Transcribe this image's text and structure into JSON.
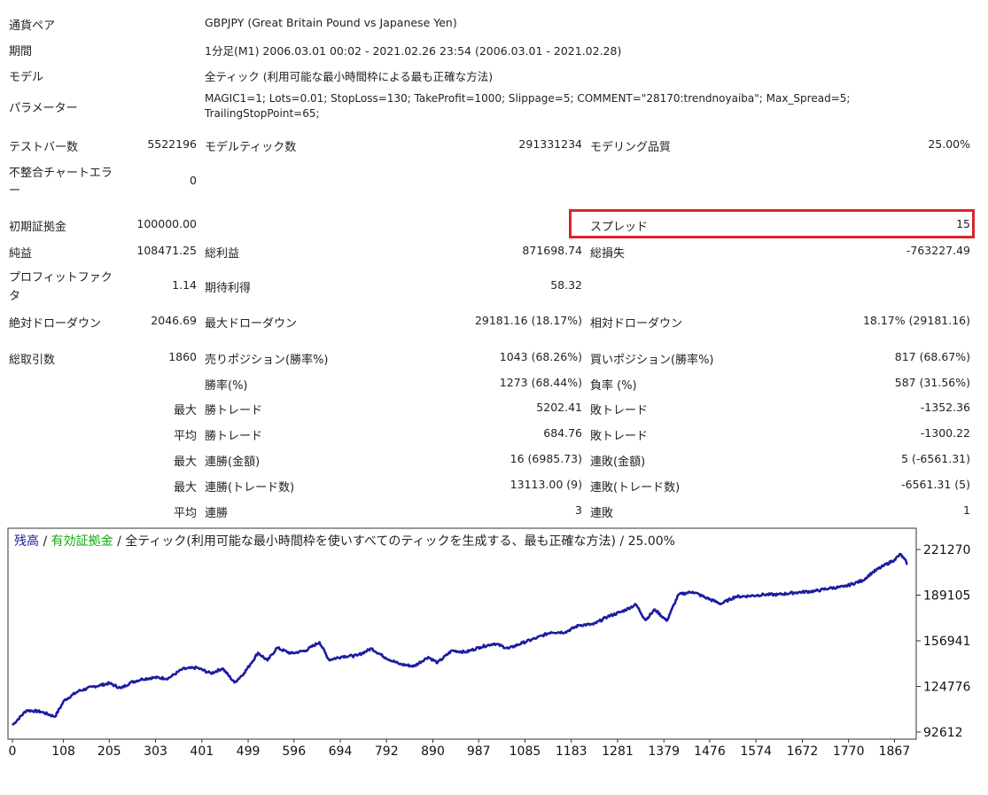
{
  "report": {
    "symbol_label": "通貨ペア",
    "symbol_value": "GBPJPY (Great Britain Pound vs Japanese Yen)",
    "period_label": "期間",
    "period_value": "1分足(M1) 2006.03.01 00:02 - 2021.02.26 23:54 (2006.03.01 - 2021.02.28)",
    "model_label": "モデル",
    "model_value": "全ティック (利用可能な最小時間枠による最も正確な方法)",
    "params_label": "パラメーター",
    "params_line1": "MAGIC1=1; Lots=0.01; StopLoss=130; TakeProfit=1000; Slippage=5; COMMENT=\"28170:trendnoyaiba\"; Max_Spread=5;",
    "params_line2": "TrailingStopPoint=65;",
    "bars_label": "テストバー数",
    "bars_value": "5522196",
    "ticks_label": "モデルティック数",
    "ticks_value": "291331234",
    "quality_label": "モデリング品質",
    "quality_value": "25.00%",
    "mismatch_label_1": "不整合チャートエラ",
    "mismatch_label_2": "ー",
    "mismatch_value": "0",
    "deposit_label": "初期証拠金",
    "deposit_value": "100000.00",
    "spread_label": "スプレッド",
    "spread_value": "15",
    "net_label": "純益",
    "net_value": "108471.25",
    "gross_profit_label": "総利益",
    "gross_profit_value": "871698.74",
    "gross_loss_label": "総損失",
    "gross_loss_value": "-763227.49",
    "pf_label_1": "プロフィットファク",
    "pf_label_2": "タ",
    "pf_value": "1.14",
    "expected_label": "期待利得",
    "expected_value": "58.32",
    "abs_dd_label": "絶対ドローダウン",
    "abs_dd_value": "2046.69",
    "max_dd_label": "最大ドローダウン",
    "max_dd_value": "29181.16 (18.17%)",
    "rel_dd_label": "相対ドローダウン",
    "rel_dd_value": "18.17% (29181.16)",
    "trades_label": "総取引数",
    "trades_value": "1860",
    "short_label": "売りポジション(勝率%)",
    "short_value": "1043 (68.26%)",
    "long_label": "買いポジション(勝率%)",
    "long_value": "817 (68.67%)",
    "win_pct_label": "勝率(%)",
    "win_pct_value": "1273 (68.44%)",
    "loss_pct_label": "負率 (%)",
    "loss_pct_value": "587 (31.56%)",
    "max1_label": "最大",
    "max_win_label": "勝トレード",
    "max_win_value": "5202.41",
    "max_loss_label": "敗トレード",
    "max_loss_value": "-1352.36",
    "avg1_label": "平均",
    "avg_win_label": "勝トレード",
    "avg_win_value": "684.76",
    "avg_loss_label": "敗トレード",
    "avg_loss_value": "-1300.22",
    "max2_label": "最大",
    "cons_win_amt_label": "連勝(金額)",
    "cons_win_amt_value": "16 (6985.73)",
    "cons_loss_amt_label": "連敗(金額)",
    "cons_loss_amt_value": "5 (-6561.31)",
    "max3_label": "最大",
    "cons_win_cnt_label": "連勝(トレード数)",
    "cons_win_cnt_value": "13113.00 (9)",
    "cons_loss_cnt_label": "連敗(トレード数)",
    "cons_loss_cnt_value": "-6561.31 (5)",
    "avg2_label": "平均",
    "avg_cons_win_label": "連勝",
    "avg_cons_win_value": "3",
    "avg_cons_loss_label": "連敗",
    "avg_cons_loss_value": "1"
  },
  "chart_data": {
    "type": "line",
    "legend": {
      "balance": "残高",
      "separator1": " / ",
      "equity": "有効証拠金",
      "separator2": " / ",
      "rest": "全ティック(利用可能な最小時間枠を使いすべてのティックを生成する、最も正確な方法) / 25.00%"
    },
    "x_ticks": [
      "0",
      "108",
      "205",
      "303",
      "401",
      "499",
      "596",
      "694",
      "792",
      "890",
      "987",
      "1085",
      "1183",
      "1281",
      "1379",
      "1476",
      "1574",
      "1672",
      "1770",
      "1867"
    ],
    "y_ticks": [
      "221270",
      "189105",
      "156941",
      "124776",
      "92612"
    ],
    "ylim": [
      92612,
      221270
    ],
    "xlim": [
      0,
      1900
    ],
    "colors": {
      "balance": "#1a1a9a",
      "equity": "#13a813",
      "line": "#1c1ca0",
      "axis_text": "#111111"
    },
    "series": [
      {
        "name": "残高",
        "x": [
          0,
          30,
          60,
          90,
          110,
          140,
          170,
          205,
          230,
          250,
          275,
          300,
          330,
          360,
          390,
          420,
          445,
          470,
          490,
          505,
          520,
          540,
          560,
          590,
          620,
          650,
          670,
          700,
          730,
          760,
          790,
          820,
          850,
          880,
          900,
          930,
          960,
          990,
          1020,
          1050,
          1080,
          1110,
          1140,
          1170,
          1200,
          1230,
          1260,
          1290,
          1320,
          1340,
          1360,
          1385,
          1410,
          1440,
          1470,
          1500,
          1530,
          1560,
          1590,
          1620,
          1660,
          1700,
          1730,
          1760,
          1800,
          1820,
          1845,
          1867,
          1880,
          1895
        ],
        "y": [
          97500,
          108000,
          107000,
          103500,
          115000,
          121500,
          124500,
          127000,
          123500,
          127500,
          130000,
          131000,
          130500,
          137000,
          138000,
          134000,
          137500,
          127500,
          134000,
          141000,
          148500,
          143000,
          152000,
          148000,
          150000,
          156000,
          143500,
          146000,
          146500,
          151500,
          145000,
          140500,
          139000,
          145500,
          141500,
          150000,
          149000,
          152500,
          155000,
          151500,
          155500,
          159000,
          163000,
          163000,
          168000,
          168500,
          174000,
          177500,
          182500,
          171500,
          179000,
          171000,
          189500,
          191500,
          187000,
          183000,
          188000,
          188500,
          189500,
          189500,
          191000,
          192000,
          194000,
          195000,
          199500,
          205000,
          210000,
          214000,
          218000,
          211000
        ]
      }
    ]
  }
}
